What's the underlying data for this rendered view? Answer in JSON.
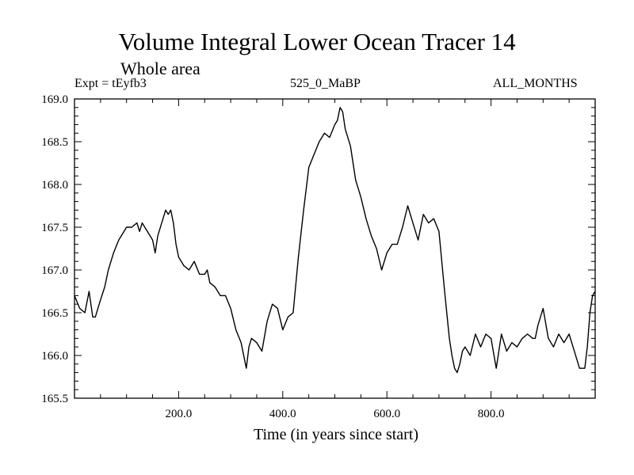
{
  "chart_data": {
    "type": "line",
    "title": "Volume Integral Lower Ocean Tracer 14",
    "subtitle": "Whole area",
    "expt_label": "Expt = tEyfb3",
    "period_label": "525_0_MaBP",
    "months_label": "ALL_MONTHS",
    "xlabel": "Time (in years since start)",
    "ylabel": "",
    "xlim": [
      0,
      1000
    ],
    "ylim": [
      165.5,
      169.0
    ],
    "xticks": [
      200,
      400,
      600,
      800
    ],
    "xtick_labels": [
      "200.0",
      "400.0",
      "600.0",
      "800.0"
    ],
    "yticks": [
      165.5,
      166.0,
      166.5,
      167.0,
      167.5,
      168.0,
      168.5,
      169.0
    ],
    "ytick_labels": [
      "165.5",
      "166.0",
      "166.5",
      "167.0",
      "167.5",
      "168.0",
      "168.5",
      "169.0"
    ],
    "series": [
      {
        "name": "Lower Ocean Tracer 14",
        "x": [
          0,
          10,
          20,
          28,
          35,
          40,
          50,
          58,
          65,
          75,
          85,
          95,
          100,
          110,
          120,
          125,
          130,
          140,
          150,
          155,
          160,
          170,
          175,
          180,
          185,
          190,
          195,
          200,
          210,
          220,
          230,
          240,
          250,
          255,
          260,
          270,
          280,
          290,
          300,
          310,
          320,
          330,
          335,
          340,
          350,
          360,
          370,
          380,
          390,
          400,
          410,
          420,
          430,
          440,
          450,
          460,
          470,
          480,
          490,
          500,
          505,
          510,
          515,
          520,
          530,
          540,
          550,
          560,
          570,
          580,
          590,
          600,
          610,
          620,
          630,
          640,
          650,
          660,
          670,
          680,
          690,
          700,
          710,
          720,
          725,
          730,
          735,
          740,
          745,
          750,
          760,
          770,
          780,
          790,
          800,
          810,
          820,
          830,
          840,
          850,
          860,
          870,
          880,
          885,
          890,
          900,
          910,
          920,
          930,
          940,
          950,
          960,
          970,
          980,
          985,
          990,
          995,
          1000
        ],
        "values": [
          166.7,
          166.55,
          166.5,
          166.75,
          166.45,
          166.45,
          166.65,
          166.8,
          167.0,
          167.2,
          167.35,
          167.45,
          167.5,
          167.5,
          167.55,
          167.45,
          167.55,
          167.45,
          167.35,
          167.2,
          167.4,
          167.6,
          167.7,
          167.65,
          167.7,
          167.55,
          167.3,
          167.15,
          167.05,
          167.0,
          167.1,
          166.95,
          166.95,
          167.0,
          166.85,
          166.8,
          166.7,
          166.7,
          166.55,
          166.3,
          166.15,
          165.85,
          166.1,
          166.2,
          166.15,
          166.05,
          166.4,
          166.6,
          166.55,
          166.3,
          166.45,
          166.5,
          167.15,
          167.7,
          168.2,
          168.35,
          168.5,
          168.6,
          168.55,
          168.7,
          168.75,
          168.9,
          168.85,
          168.65,
          168.45,
          168.05,
          167.85,
          167.6,
          167.4,
          167.25,
          167.0,
          167.2,
          167.3,
          167.3,
          167.5,
          167.75,
          167.55,
          167.35,
          167.65,
          167.55,
          167.6,
          167.45,
          166.8,
          166.2,
          166.0,
          165.85,
          165.8,
          165.9,
          166.05,
          166.1,
          166.0,
          166.25,
          166.1,
          166.25,
          166.2,
          165.85,
          166.25,
          166.05,
          166.15,
          166.1,
          166.2,
          166.25,
          166.2,
          166.2,
          166.35,
          166.55,
          166.2,
          166.1,
          166.25,
          166.15,
          166.25,
          166.05,
          165.85,
          165.85,
          166.1,
          166.5,
          166.7,
          166.75
        ]
      }
    ]
  }
}
